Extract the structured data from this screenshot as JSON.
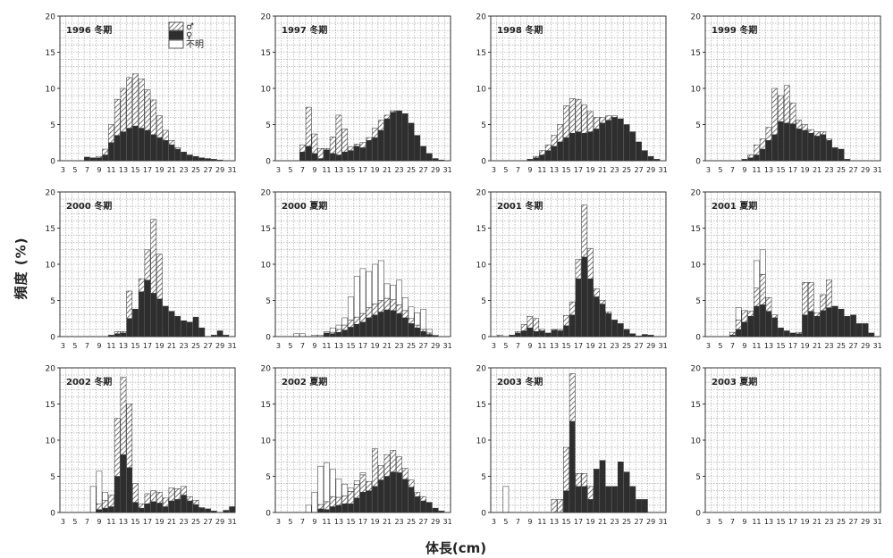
{
  "y_axis_label": "頻度 (%)",
  "x_axis_label": "体長(cm)",
  "legend": [
    {
      "label": "♂",
      "pattern": "hatch"
    },
    {
      "label": "♀",
      "pattern": "dark"
    },
    {
      "label": "不明",
      "pattern": "white"
    }
  ],
  "colors": {
    "female": "#2e2e2e",
    "hatch": "#555555",
    "grid": "#9a9a9a",
    "frame": "#333333"
  },
  "chart_data": {
    "type": "bar",
    "stacking": "stacked",
    "bin_unit": "cm",
    "x_bins": [
      3,
      4,
      5,
      6,
      7,
      8,
      9,
      10,
      11,
      12,
      13,
      14,
      15,
      16,
      17,
      18,
      19,
      20,
      21,
      22,
      23,
      24,
      25,
      26,
      27,
      28,
      29,
      30,
      31
    ],
    "x_tick_labels": [
      "3",
      "5",
      "7",
      "9",
      "11",
      "13",
      "15",
      "17",
      "19",
      "21",
      "23",
      "25",
      "27",
      "29",
      "31"
    ],
    "y_ticks": [
      0,
      5,
      10,
      15,
      20
    ],
    "ylim": [
      0,
      20
    ],
    "grid": true,
    "panels": [
      {
        "title": "1996 冬期",
        "legend": true,
        "female": [
          0,
          0,
          0,
          0,
          0.5,
          0.4,
          0.4,
          0.8,
          2.5,
          3.5,
          4,
          4.5,
          4.8,
          4.5,
          4.2,
          3.6,
          3.2,
          2.8,
          2.2,
          1.6,
          1.2,
          0.8,
          0.6,
          0.4,
          0.3,
          0.2,
          0.1,
          0,
          0
        ],
        "male": [
          0,
          0,
          0,
          0,
          0,
          0,
          0.2,
          0.8,
          2.5,
          5,
          6,
          7,
          7.2,
          6.8,
          5.6,
          4.8,
          3,
          1.4,
          0.6,
          0.2,
          0,
          0,
          0,
          0,
          0,
          0,
          0,
          0,
          0
        ],
        "unknown": [
          0,
          0,
          0,
          0,
          0,
          0,
          0,
          0,
          0,
          0,
          0,
          0,
          0,
          0,
          0,
          0,
          0,
          0,
          0,
          0,
          0,
          0,
          0,
          0,
          0,
          0,
          0,
          0,
          0
        ]
      },
      {
        "title": "1997 冬期",
        "female": [
          0,
          0,
          0,
          0,
          1.2,
          2,
          1,
          0.3,
          1.5,
          1,
          0.8,
          1.2,
          1.4,
          2,
          1.8,
          2.8,
          3.2,
          4.2,
          5.8,
          6.7,
          6.9,
          6.5,
          5.2,
          3.5,
          2,
          1,
          0.3,
          0.1,
          0
        ],
        "male": [
          0,
          0,
          0,
          0,
          1,
          5.4,
          2.7,
          1.4,
          0.2,
          2.3,
          5.5,
          3.2,
          0.5,
          0.3,
          0.7,
          0.4,
          1.3,
          1.4,
          0.5,
          0.2,
          0,
          0,
          0,
          0,
          0,
          0,
          0,
          0,
          0
        ],
        "unknown": [
          0,
          0,
          0,
          0,
          0,
          0,
          0,
          0,
          0,
          0,
          0,
          0,
          0,
          0,
          0,
          0,
          0,
          0,
          0,
          0,
          0,
          0,
          0,
          0,
          0,
          0,
          0,
          0,
          0
        ]
      },
      {
        "title": "1998 冬期",
        "female": [
          0,
          0,
          0,
          0,
          0,
          0,
          0.2,
          0.4,
          0.8,
          1.4,
          2,
          2.6,
          3.2,
          3.8,
          4,
          3.8,
          4,
          4.4,
          5.2,
          5.6,
          6,
          5.8,
          5,
          4,
          2.6,
          1.4,
          0.6,
          0.2,
          0
        ],
        "male": [
          0,
          0,
          0,
          0,
          0,
          0,
          0,
          0.2,
          0.6,
          0.8,
          1.5,
          2.4,
          4.4,
          4.8,
          4.5,
          3.9,
          2.8,
          1.6,
          0.8,
          0.6,
          0.2,
          0,
          0,
          0,
          0,
          0,
          0,
          0,
          0
        ],
        "unknown": [
          0,
          0,
          0,
          0,
          0,
          0,
          0,
          0,
          0,
          0,
          0,
          0,
          0,
          0,
          0,
          0,
          0,
          0,
          0,
          0,
          0,
          0,
          0,
          0,
          0,
          0,
          0,
          0,
          0
        ]
      },
      {
        "title": "1999 冬期",
        "female": [
          0,
          0,
          0,
          0,
          0,
          0,
          0.2,
          0.4,
          0.8,
          1.6,
          2.8,
          3.6,
          5.4,
          5.2,
          5.1,
          4.4,
          4.2,
          3.8,
          3.4,
          3.6,
          2.8,
          1.8,
          1.6,
          0.2,
          0,
          0,
          0,
          0,
          0
        ],
        "male": [
          0,
          0,
          0,
          0,
          0,
          0,
          0,
          0.4,
          1.4,
          1.4,
          1.8,
          6.4,
          3.6,
          5.2,
          2.9,
          1.2,
          0.8,
          0.5,
          0.6,
          0.4,
          0.2,
          0,
          0,
          0,
          0,
          0,
          0,
          0,
          0
        ],
        "unknown": [
          0,
          0,
          0,
          0,
          0,
          0,
          0,
          0,
          0,
          0,
          0,
          0,
          0,
          0,
          0,
          0,
          0,
          0,
          0,
          0,
          0,
          0,
          0,
          0,
          0,
          0,
          0,
          0,
          0
        ]
      },
      {
        "title": "2000 冬期",
        "female": [
          0,
          0,
          0,
          0,
          0,
          0,
          0,
          0,
          0.2,
          0.4,
          0.5,
          2.5,
          3.8,
          6.2,
          7.8,
          6,
          5.2,
          4.2,
          3.5,
          2.8,
          2.2,
          2,
          2.7,
          1.2,
          0,
          0.2,
          0.8,
          0.2,
          0
        ],
        "male": [
          0,
          0,
          0,
          0,
          0,
          0,
          0,
          0,
          0,
          0.3,
          0.2,
          3.8,
          0,
          1.8,
          4.2,
          10.2,
          6.2,
          0,
          0,
          0,
          0,
          0,
          0,
          0,
          0,
          0,
          0,
          0,
          0
        ],
        "unknown": [
          0,
          0,
          0,
          0,
          0,
          0,
          0,
          0,
          0,
          0,
          0,
          0,
          0,
          0,
          0,
          0,
          0,
          0,
          0,
          0,
          0,
          0,
          0,
          0,
          0,
          0,
          0,
          0,
          0
        ]
      },
      {
        "title": "2000 夏期",
        "female": [
          0,
          0,
          0,
          0,
          0,
          0,
          0,
          0,
          0.5,
          0.4,
          0.6,
          0.9,
          1.3,
          1.7,
          2,
          2.6,
          3,
          3.4,
          3.7,
          3.6,
          3.2,
          2.6,
          1.8,
          1.2,
          0.7,
          0.3,
          0.1,
          0,
          0
        ],
        "male": [
          0,
          0,
          0,
          0,
          0,
          0,
          0,
          0,
          0,
          0.2,
          0.4,
          0.7,
          1,
          1,
          1.2,
          1.4,
          1.5,
          1.6,
          1.6,
          1.5,
          1.2,
          1,
          0.7,
          0.4,
          0.3,
          0.2,
          0.1,
          0,
          0
        ],
        "unknown": [
          0,
          0,
          0,
          0.4,
          0.4,
          0,
          0.2,
          0.2,
          0.2,
          0.6,
          0.6,
          1,
          3.2,
          5.6,
          6.2,
          5,
          5.5,
          5.5,
          2,
          2,
          3.4,
          1.8,
          1.6,
          1.7,
          2.8,
          0.5,
          0,
          0,
          0
        ]
      },
      {
        "title": "2001 冬期",
        "female": [
          0,
          0,
          0,
          0.2,
          0.5,
          0.8,
          1.2,
          0.7,
          0.8,
          0.5,
          0.9,
          0.8,
          1.5,
          3,
          8,
          11,
          8,
          5.5,
          4.5,
          3.2,
          2.3,
          1.8,
          1,
          0.4,
          0.1,
          0.3,
          0.2,
          0,
          0
        ],
        "male": [
          0,
          0.2,
          0,
          0,
          0.2,
          0.9,
          1.6,
          1.8,
          0.2,
          0,
          0.1,
          0.2,
          1.4,
          1.8,
          2.7,
          7.2,
          4.2,
          1.1,
          0.5,
          0.2,
          0,
          0,
          0,
          0,
          0,
          0,
          0,
          0,
          0
        ],
        "unknown": [
          0,
          0,
          0,
          0,
          0,
          0,
          0,
          0,
          0,
          0,
          0,
          0,
          0,
          0,
          0,
          0,
          0,
          0,
          0,
          0,
          0,
          0,
          0,
          0,
          0,
          0,
          0,
          0,
          0
        ]
      },
      {
        "title": "2001 夏期",
        "female": [
          0,
          0,
          0,
          0,
          0.2,
          1,
          2,
          2.8,
          4.2,
          4.4,
          3.5,
          2.6,
          1.2,
          0.8,
          0.5,
          0.4,
          3,
          3.5,
          2.8,
          3.6,
          4,
          4.2,
          3.8,
          2.8,
          3,
          1.8,
          1.8,
          0.5,
          0
        ],
        "male": [
          0,
          0,
          0,
          0,
          0.4,
          1.3,
          1.6,
          0.7,
          2.5,
          4.2,
          1.9,
          0.4,
          0,
          0,
          0,
          0.2,
          4.5,
          4,
          0.5,
          2.2,
          3.8,
          0,
          0,
          0,
          0,
          0,
          0,
          0,
          0
        ],
        "unknown": [
          0,
          0,
          0,
          0,
          0,
          1.7,
          0,
          0,
          3.8,
          3.4,
          0,
          0,
          0,
          0,
          0,
          0,
          0,
          0,
          0,
          0,
          0,
          0,
          0,
          0,
          0,
          0,
          0,
          0,
          0
        ]
      },
      {
        "title": "2002 冬期",
        "female": [
          0,
          0,
          0,
          0,
          0,
          0,
          0.4,
          0.6,
          0.8,
          5,
          8,
          6.2,
          1.4,
          0.6,
          1.2,
          1.5,
          1.3,
          0.8,
          1.6,
          1.8,
          2.4,
          1.6,
          1.1,
          0.6,
          0.5,
          0.2,
          0,
          0.3,
          0.8
        ],
        "male": [
          0,
          0,
          0,
          0,
          0,
          0,
          0.8,
          1.1,
          1.6,
          8,
          10.7,
          8.8,
          2.6,
          0.6,
          1.4,
          1.5,
          1.5,
          1.2,
          1.8,
          1.5,
          1.2,
          0.6,
          0.6,
          0.1,
          0,
          0,
          0,
          0,
          0
        ],
        "unknown": [
          0,
          0,
          0,
          0,
          0,
          3.6,
          4.5,
          1.1,
          0,
          0,
          0,
          0,
          0,
          0,
          0,
          0,
          0,
          0,
          0,
          0,
          0,
          0,
          0,
          0,
          0,
          0,
          0,
          0,
          0
        ]
      },
      {
        "title": "2002 夏期",
        "female": [
          0,
          0,
          0,
          0,
          0,
          0,
          0,
          0.5,
          0.4,
          0.8,
          1,
          1.2,
          1.2,
          2,
          2.8,
          3,
          3.6,
          4.5,
          5,
          5.6,
          5.5,
          4.6,
          3.5,
          2.2,
          1.6,
          1.4,
          0.6,
          0.2,
          0
        ],
        "male": [
          0,
          0,
          0,
          0,
          0,
          0,
          0,
          0.6,
          1.1,
          1.4,
          1.1,
          1.1,
          1.7,
          1.9,
          2.4,
          1.3,
          5.2,
          2,
          3,
          3,
          2.2,
          1.5,
          1,
          0.6,
          0.6,
          0,
          0,
          0,
          0
        ],
        "unknown": [
          0,
          0,
          0,
          0,
          0,
          1,
          2.8,
          5.3,
          5.4,
          3.8,
          2.5,
          1.6,
          0.5,
          0.5,
          0.3,
          0,
          0,
          0,
          0,
          0,
          0,
          0,
          0,
          0,
          0,
          0,
          0,
          0,
          0
        ]
      },
      {
        "title": "2003 冬期",
        "female": [
          0,
          0,
          0,
          0,
          0,
          0,
          0,
          0,
          0,
          0,
          0,
          0,
          3,
          12.6,
          3.6,
          3.6,
          1.8,
          6,
          7.2,
          3.6,
          3.6,
          7,
          5.6,
          3.6,
          1.8,
          1.8,
          0,
          0,
          0
        ],
        "male": [
          0,
          0,
          0,
          0,
          0,
          0,
          0,
          0,
          0,
          0,
          1.8,
          1.8,
          6,
          6.6,
          1.8,
          1.8,
          1.8,
          0,
          0,
          0,
          0,
          0,
          0,
          0,
          0,
          0,
          0,
          0,
          0
        ],
        "unknown": [
          0,
          0,
          3.6,
          0,
          0,
          0,
          0,
          0,
          0,
          0,
          0,
          0,
          0,
          0,
          0,
          0,
          0,
          0,
          0,
          0,
          0,
          0,
          0,
          0,
          0,
          0,
          0,
          0,
          0
        ]
      },
      {
        "title": "2003 夏期",
        "female": [
          0,
          0,
          0,
          0,
          0,
          0,
          0,
          0,
          0,
          0,
          0,
          0,
          0,
          0,
          0,
          0,
          0,
          0,
          0,
          0,
          0,
          0,
          0,
          0,
          0,
          0,
          0,
          0,
          0
        ],
        "male": [
          0,
          0,
          0,
          0,
          0,
          0,
          0,
          0,
          0,
          0,
          0,
          0,
          0,
          0,
          0,
          0,
          0,
          0,
          0,
          0,
          0,
          0,
          0,
          0,
          0,
          0,
          0,
          0,
          0
        ],
        "unknown": [
          0,
          0,
          0,
          0,
          0,
          0,
          0,
          0,
          0,
          0,
          0,
          0,
          0,
          0,
          0,
          0,
          0,
          0,
          0,
          0,
          0,
          0,
          0,
          0,
          0,
          0,
          0,
          0,
          0
        ]
      }
    ]
  }
}
